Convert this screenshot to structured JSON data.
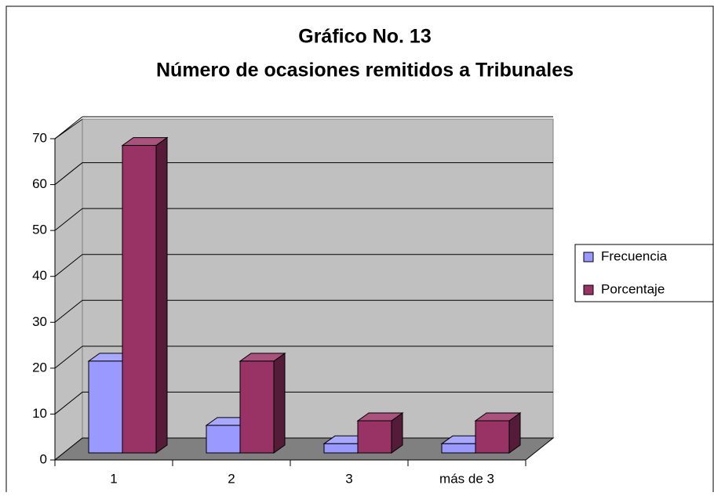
{
  "chart_data": {
    "type": "bar3d",
    "title": "Gráfico No. 13",
    "subtitle": "Número de ocasiones remitidos a Tribunales",
    "categories": [
      "1",
      "2",
      "3",
      "más de 3"
    ],
    "series": [
      {
        "name": "Frecuencia",
        "color": "#9999ff",
        "values": [
          20,
          6,
          2,
          2
        ]
      },
      {
        "name": "Porcentaje",
        "color": "#993366",
        "values": [
          67,
          20,
          7,
          7
        ]
      }
    ],
    "ylim": [
      0,
      70
    ],
    "yticks": [
      0,
      10,
      20,
      30,
      40,
      50,
      60,
      70
    ],
    "grid": true,
    "legend": "right"
  }
}
